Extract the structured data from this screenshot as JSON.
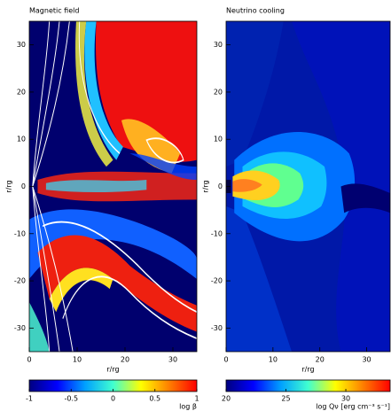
{
  "chart_data": [
    {
      "type": "heatmap",
      "title": "Magnetic field",
      "x_label": "r/rg",
      "y_label": "r/rg",
      "xlim": [
        0,
        35
      ],
      "xticks": [
        0,
        10,
        20,
        30
      ],
      "ylim": [
        -35,
        35
      ],
      "yticks": [
        -30,
        -20,
        -10,
        0,
        10,
        20,
        30
      ],
      "colorbar": {
        "lim": [
          -1,
          1
        ],
        "ticks": [
          -1,
          -0.5,
          0,
          0.5,
          1
        ],
        "label": "log β",
        "colors": [
          "#000080",
          "#0000ff",
          "#00a0ff",
          "#40ffd0",
          "#ffff00",
          "#ff8000",
          "#ff0000"
        ]
      }
    },
    {
      "type": "heatmap",
      "title": "Neutrino cooling",
      "x_label": "r/rg",
      "y_label": "r/rg",
      "xlim": [
        0,
        35
      ],
      "xticks": [
        0,
        10,
        20,
        30
      ],
      "ylim": [
        -35,
        35
      ],
      "yticks": [
        -30,
        -20,
        -10,
        0,
        10,
        20,
        30
      ],
      "colorbar": {
        "lim": [
          20,
          33.7
        ],
        "ticks": [
          20,
          25,
          30
        ],
        "label": "log Qν [erg cm⁻³ s⁻¹]",
        "colors": [
          "#000080",
          "#0000ff",
          "#00a0ff",
          "#40ffd0",
          "#ffff00",
          "#ff8000",
          "#ff0000"
        ]
      }
    }
  ]
}
